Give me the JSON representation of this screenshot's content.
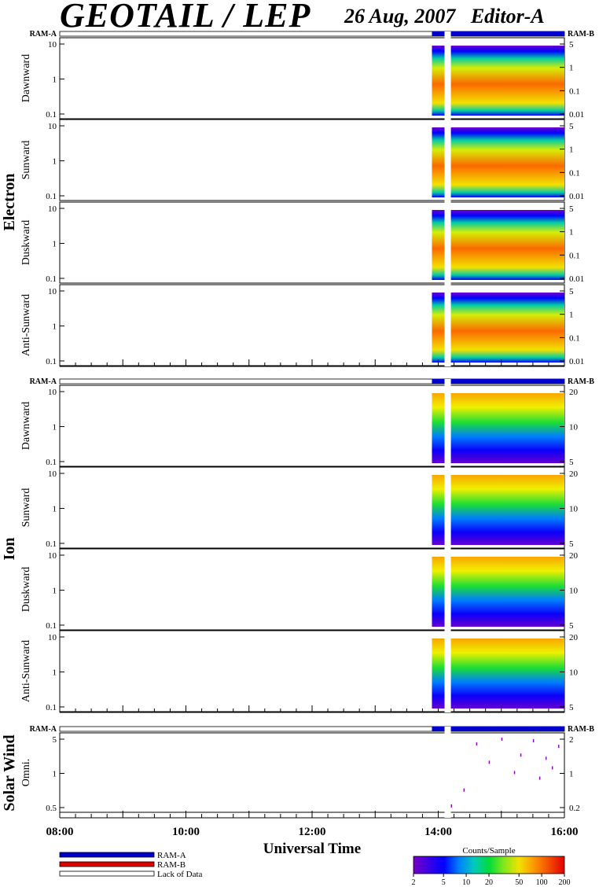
{
  "header": {
    "title": "GEOTAIL / LEP",
    "date": "26 Aug, 2007",
    "editor": "Editor-A"
  },
  "chart_data": {
    "type": "heatmap",
    "description_free": true,
    "x_axis": {
      "label": "Universal Time",
      "range": [
        "08:00",
        "16:00"
      ],
      "tick_labels": [
        "08:00",
        "10:00",
        "12:00",
        "14:00",
        "16:00"
      ]
    },
    "mode_bar_labels": {
      "left": "RAM-A",
      "right": "RAM-B"
    },
    "groups": [
      {
        "name": "Electron",
        "panels": [
          {
            "label": "Dawnward",
            "left_ticks": [
              "10",
              "1",
              "0.1"
            ],
            "right_ticks": [
              "5",
              "1",
              "0.1",
              "0.01"
            ]
          },
          {
            "label": "Sunward",
            "left_ticks": [
              "10",
              "1",
              "0.1"
            ],
            "right_ticks": [
              "5",
              "1",
              "0.1",
              "0.01"
            ]
          },
          {
            "label": "Duskward",
            "left_ticks": [
              "10",
              "1",
              "0.1"
            ],
            "right_ticks": [
              "5",
              "1",
              "0.1",
              "0.01"
            ]
          },
          {
            "label": "Anti-Sunward",
            "left_ticks": [
              "10",
              "1",
              "0.1"
            ],
            "right_ticks": [
              "5",
              "1",
              "0.1",
              "0.01"
            ]
          }
        ]
      },
      {
        "name": "Ion",
        "panels": [
          {
            "label": "Dawnward",
            "left_ticks": [
              "10",
              "1",
              "0.1"
            ],
            "right_ticks": [
              "20",
              "10",
              "5"
            ]
          },
          {
            "label": "Sunward",
            "left_ticks": [
              "10",
              "1",
              "0.1"
            ],
            "right_ticks": [
              "20",
              "10",
              "5"
            ]
          },
          {
            "label": "Duskward",
            "left_ticks": [
              "10",
              "1",
              "0.1"
            ],
            "right_ticks": [
              "20",
              "10",
              "5"
            ]
          },
          {
            "label": "Anti-Sunward",
            "left_ticks": [
              "10",
              "1",
              "0.1"
            ],
            "right_ticks": [
              "20",
              "10",
              "5"
            ]
          }
        ]
      },
      {
        "name": "Solar Wind",
        "panels": [
          {
            "label": "Omni.",
            "left_ticks": [
              "5",
              "1",
              "0.5"
            ],
            "right_ticks": [
              "2",
              "1",
              "0.2"
            ]
          }
        ]
      }
    ],
    "data_intervals": [
      {
        "start": "13:54",
        "end": "14:06",
        "state": "data"
      },
      {
        "start": "14:06",
        "end": "14:12",
        "state": "gap"
      },
      {
        "start": "14:12",
        "end": "16:00",
        "state": "data"
      }
    ],
    "colorbar": {
      "label": "Counts/Sample",
      "scale": "log",
      "range": [
        2,
        200
      ],
      "tick_labels": [
        "2",
        "5",
        "10",
        "20",
        "50",
        "100",
        "200"
      ]
    },
    "legend": [
      {
        "label": "RAM-A",
        "color": "#0000cc"
      },
      {
        "label": "RAM-B",
        "color": "#e00000"
      },
      {
        "label": "Lack of Data",
        "color": "#ffffff"
      }
    ]
  }
}
